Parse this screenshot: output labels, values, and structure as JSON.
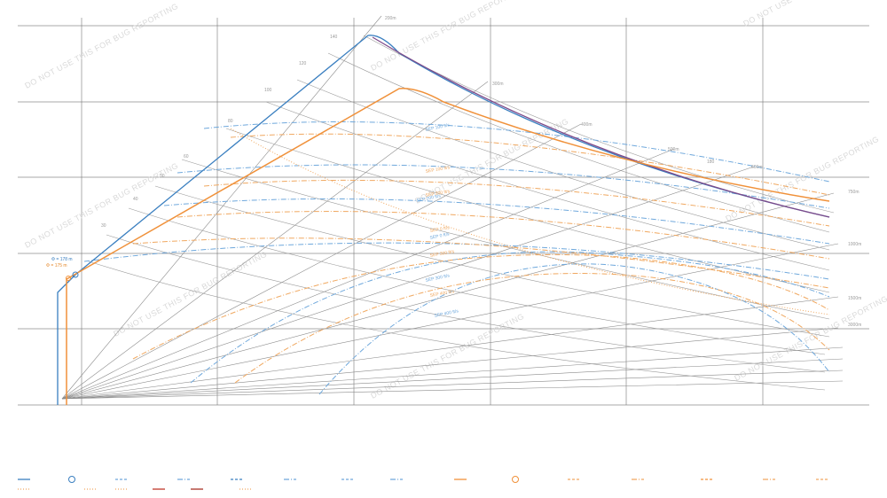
{
  "chart_data": {
    "type": "line",
    "title": "",
    "xlabel": "",
    "ylabel": "",
    "grid": true,
    "watermark": "DO NOT USE THIS FOR BUG REPORTING",
    "envelope_blue": {
      "label": "Φ = 178 m",
      "color": "#3a7fc0"
    },
    "envelope_orange": {
      "label": "Φ = 175 m",
      "color": "#f0913a"
    },
    "speed_labels": [
      {
        "text": "200m"
      },
      {
        "text": "300m"
      },
      {
        "text": "400m"
      },
      {
        "text": "500m"
      },
      {
        "text": "600m"
      },
      {
        "text": "750m"
      },
      {
        "text": "1000m"
      },
      {
        "text": "1500m"
      },
      {
        "text": "3000m"
      }
    ],
    "turn_labels": [
      {
        "text": "140"
      },
      {
        "text": "120"
      },
      {
        "text": "100"
      },
      {
        "text": "80"
      },
      {
        "text": "60"
      },
      {
        "text": "50"
      },
      {
        "text": "40"
      },
      {
        "text": "30"
      },
      {
        "text": "180"
      }
    ],
    "sep_labels_blue": [
      {
        "text": "SEP 100 ft/s"
      },
      {
        "text": "SEP 200 ft/s"
      },
      {
        "text": "SEP 0 ft/s"
      },
      {
        "text": "SEP 300 ft/s"
      },
      {
        "text": "SEP 400 ft/s"
      }
    ],
    "sep_labels_orange": [
      {
        "text": "SEP 100 ft/s"
      },
      {
        "text": "SEP 200 ft/s"
      },
      {
        "text": "SEP 0 ft/s"
      },
      {
        "text": "SEP 300 ft/s"
      },
      {
        "text": "SEP 400 ft/s"
      }
    ],
    "legend": {
      "placement": "bottom",
      "row1_colors": [
        "#3a7fc0",
        "#3a7fc0",
        "#6fa8dc",
        "#6fa8dc",
        "#3a7fc0",
        "#6fa8dc",
        "#6fa8dc",
        "#6fa8dc",
        "#f0913a",
        "#f0913a",
        "#f0a860",
        "#f0a860",
        "#f0913a",
        "#f0a860",
        "#f0a860"
      ],
      "row2_colors": [
        "#f0a860",
        "#f0a860",
        "#f0a860",
        "#c0392b",
        "#a93226",
        "#f0a860"
      ]
    }
  }
}
